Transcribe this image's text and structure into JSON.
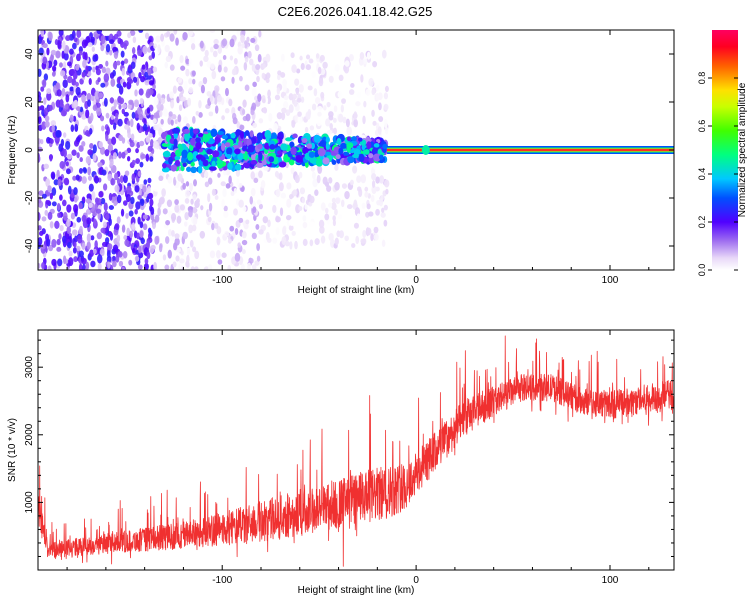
{
  "title": "C2E6.2026.041.18.42.G25",
  "chart_data": [
    {
      "type": "heatmap",
      "xlabel": "Height of straight line (km)",
      "ylabel": "Frequency (Hz)",
      "xlim": [
        -195,
        133
      ],
      "ylim": [
        -50,
        50
      ],
      "xticks": [
        -100,
        0,
        100
      ],
      "xtick_labels": [
        "-100",
        "0",
        "100"
      ],
      "yticks": [
        -40,
        -20,
        0,
        20,
        40
      ],
      "ytick_labels": [
        "-40",
        "-20",
        "0",
        "20",
        "40"
      ],
      "colorbar": {
        "label": "Normalized spectral amplitude",
        "range": [
          0.0,
          1.0
        ],
        "ticks": [
          0.0,
          0.2,
          0.4,
          0.6,
          0.8
        ],
        "tick_labels": [
          "0.0",
          "0.2",
          "0.4",
          "0.6",
          "0.8"
        ],
        "colormap": "rainbow-white-violet-blue-cyan-green-yellow-red"
      },
      "features": {
        "carrier_line": {
          "x_start": -15,
          "x_end": 133,
          "frequency": 0,
          "amplitude": 0.95
        },
        "scatter_regions": [
          {
            "x_range": [
              -195,
              -135
            ],
            "freq_range": [
              -50,
              50
            ],
            "amplitude_range": [
              0.05,
              0.25
            ]
          },
          {
            "x_range": [
              -135,
              -80
            ],
            "freq_range": [
              -50,
              50
            ],
            "amplitude_range": [
              0.0,
              0.1
            ]
          },
          {
            "x_range": [
              -80,
              -15
            ],
            "freq_range": [
              -40,
              40
            ],
            "amplitude_range": [
              0.0,
              0.06
            ]
          }
        ],
        "central_band": {
          "x_range": [
            -130,
            -15
          ],
          "freq_range": [
            -10,
            10
          ],
          "amplitude_range": [
            0.1,
            0.5
          ]
        }
      }
    },
    {
      "type": "line",
      "xlabel": "Height of straight line (km)",
      "ylabel": "SNR (10 * v/v)",
      "xlim": [
        -195,
        133
      ],
      "ylim": [
        0,
        3550
      ],
      "xticks": [
        -100,
        0,
        100
      ],
      "xtick_labels": [
        "-100",
        "0",
        "100"
      ],
      "yticks": [
        1000,
        2000,
        3000
      ],
      "ytick_labels": [
        "1000",
        "2000",
        "3000"
      ],
      "series": [
        {
          "color": "#f03030",
          "x": [
            -195,
            -190,
            -170,
            -150,
            -130,
            -110,
            -90,
            -70,
            -50,
            -30,
            -15,
            -5,
            10,
            25,
            40,
            55,
            70,
            85,
            100,
            115,
            133
          ],
          "y": [
            950,
            300,
            350,
            420,
            480,
            560,
            660,
            780,
            900,
            1050,
            1150,
            1250,
            1750,
            2250,
            2500,
            2700,
            2700,
            2500,
            2450,
            2500,
            2600
          ],
          "spread": [
            500,
            250,
            280,
            320,
            380,
            450,
            550,
            650,
            700,
            800,
            800,
            700,
            600,
            550,
            450,
            400,
            400,
            400,
            420,
            450,
            450
          ]
        }
      ]
    }
  ]
}
